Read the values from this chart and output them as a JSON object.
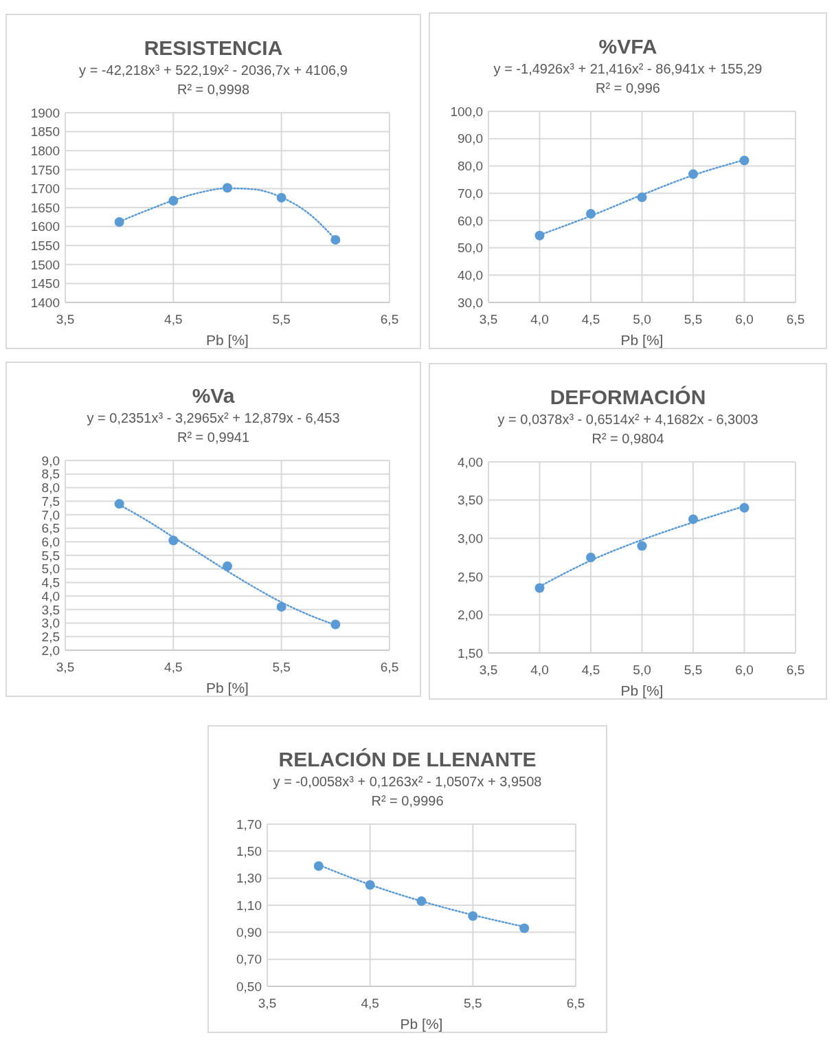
{
  "chart_data": [
    {
      "type": "scatter",
      "title": "RESISTENCIA",
      "subtitle": "y = -42,218x³ + 522,19x² - 2036,7x + 4106,9",
      "annotations": [
        "R² = 0,9998"
      ],
      "xlabel": "Pb [%]",
      "grid": true,
      "legend": false,
      "x": [
        4,
        4.5,
        5,
        5.5,
        6
      ],
      "xlim": [
        3.5,
        6.5
      ],
      "xticks": [
        {
          "value": 3.5,
          "label": "3,5"
        },
        {
          "value": 4.5,
          "label": "4,5"
        },
        {
          "value": 5.5,
          "label": "5,5"
        },
        {
          "value": 6.5,
          "label": "6,5"
        }
      ],
      "ylim": [
        1400,
        1900
      ],
      "yticks": [
        1400,
        1450,
        1500,
        1550,
        1600,
        1650,
        1700,
        1750,
        1800,
        1850,
        1900
      ],
      "series": [
        {
          "type": "scatter",
          "color": "#5b9bd5",
          "marker": "circle",
          "values": [
            1612,
            1668,
            1702,
            1676,
            1565
          ]
        },
        {
          "type": "line",
          "color": "#5b9bd5",
          "line_style": "dotted",
          "marker": "none",
          "x": [
            4,
            4.25,
            4.5,
            4.75,
            5,
            5.25,
            5.5,
            5.75,
            6
          ],
          "values": [
            1613,
            1642,
            1669,
            1690,
            1701,
            1698,
            1677,
            1635,
            1566
          ]
        }
      ]
    },
    {
      "type": "scatter",
      "title": "%VFA",
      "subtitle": "y = -1,4926x³ + 21,416x² - 86,941x + 155,29",
      "annotations": [
        "R² = 0,996"
      ],
      "xlabel": "Pb [%]",
      "grid": true,
      "legend": false,
      "x": [
        4,
        4.5,
        5,
        5.5,
        6
      ],
      "xlim": [
        3.5,
        6.5
      ],
      "xticks": [
        {
          "value": 3.5,
          "label": "3,5"
        },
        {
          "value": 4,
          "label": "4,0"
        },
        {
          "value": 4.5,
          "label": "4,5"
        },
        {
          "value": 5,
          "label": "5,0"
        },
        {
          "value": 5.5,
          "label": "5,5"
        },
        {
          "value": 6,
          "label": "6,0"
        },
        {
          "value": 6.5,
          "label": "6,5"
        }
      ],
      "ylim": [
        30,
        100
      ],
      "yticks": [
        {
          "value": 30,
          "label": "30,0"
        },
        {
          "value": 40,
          "label": "40,0"
        },
        {
          "value": 50,
          "label": "50,0"
        },
        {
          "value": 60,
          "label": "60,0"
        },
        {
          "value": 70,
          "label": "70,0"
        },
        {
          "value": 80,
          "label": "80,0"
        },
        {
          "value": 90,
          "label": "90,0"
        },
        {
          "value": 100,
          "label": "100,0"
        }
      ],
      "series": [
        {
          "type": "scatter",
          "color": "#5b9bd5",
          "marker": "circle",
          "values": [
            54.5,
            62.5,
            68.5,
            77,
            82
          ]
        },
        {
          "type": "line",
          "color": "#5b9bd5",
          "line_style": "dotted",
          "marker": "none",
          "x": [
            4,
            4.5,
            5,
            5.5,
            6
          ],
          "values": [
            54.7,
            61.7,
            69.4,
            76.6,
            82.2
          ]
        }
      ]
    },
    {
      "type": "scatter",
      "title": "%Va",
      "subtitle": "y = 0,2351x³ - 3,2965x² + 12,879x - 6,453",
      "annotations": [
        "R² = 0,9941"
      ],
      "xlabel": "Pb [%]",
      "grid": true,
      "legend": false,
      "x": [
        4,
        4.5,
        5,
        5.5,
        6
      ],
      "xlim": [
        3.5,
        6.5
      ],
      "xticks": [
        {
          "value": 3.5,
          "label": "3,5"
        },
        {
          "value": 4.5,
          "label": "4,5"
        },
        {
          "value": 5.5,
          "label": "5,5"
        },
        {
          "value": 6.5,
          "label": "6,5"
        }
      ],
      "ylim": [
        2,
        9
      ],
      "yticks": [
        {
          "value": 2,
          "label": "2,0"
        },
        {
          "value": 2.5,
          "label": "2,5"
        },
        {
          "value": 3,
          "label": "3,0"
        },
        {
          "value": 3.5,
          "label": "3,5"
        },
        {
          "value": 4,
          "label": "4,0"
        },
        {
          "value": 4.5,
          "label": "4,5"
        },
        {
          "value": 5,
          "label": "5,0"
        },
        {
          "value": 5.5,
          "label": "5,5"
        },
        {
          "value": 6,
          "label": "6,0"
        },
        {
          "value": 6.5,
          "label": "6,5"
        },
        {
          "value": 7,
          "label": "7,0"
        },
        {
          "value": 7.5,
          "label": "7,5"
        },
        {
          "value": 8,
          "label": "8,0"
        },
        {
          "value": 8.5,
          "label": "8,5"
        },
        {
          "value": 9,
          "label": "9,0"
        }
      ],
      "series": [
        {
          "type": "scatter",
          "color": "#5b9bd5",
          "marker": "circle",
          "values": [
            7.4,
            6.05,
            5.1,
            3.6,
            2.95
          ]
        },
        {
          "type": "line",
          "color": "#5b9bd5",
          "line_style": "dotted",
          "marker": "none",
          "x": [
            4,
            4.25,
            4.5,
            4.75,
            5,
            5.25,
            5.5,
            5.75,
            6
          ],
          "values": [
            7.37,
            6.8,
            6.17,
            5.55,
            4.92,
            4.32,
            3.77,
            3.31,
            2.93
          ]
        }
      ]
    },
    {
      "type": "scatter",
      "title": "DEFORMACIÓN",
      "subtitle": "y = 0,0378x³ - 0,6514x² + 4,1682x - 6,3003",
      "annotations": [
        "R² = 0,9804"
      ],
      "xlabel": "Pb [%]",
      "grid": true,
      "legend": false,
      "x": [
        4,
        4.5,
        5,
        5.5,
        6
      ],
      "xlim": [
        3.5,
        6.5
      ],
      "xticks": [
        {
          "value": 3.5,
          "label": "3,5"
        },
        {
          "value": 4,
          "label": "4,0"
        },
        {
          "value": 4.5,
          "label": "4,5"
        },
        {
          "value": 5,
          "label": "5,0"
        },
        {
          "value": 5.5,
          "label": "5,5"
        },
        {
          "value": 6,
          "label": "6,0"
        },
        {
          "value": 6.5,
          "label": "6,5"
        }
      ],
      "ylim": [
        1.5,
        4
      ],
      "yticks": [
        {
          "value": 1.5,
          "label": "1,50"
        },
        {
          "value": 2,
          "label": "2,00"
        },
        {
          "value": 2.5,
          "label": "2,50"
        },
        {
          "value": 3,
          "label": "3,00"
        },
        {
          "value": 3.5,
          "label": "3,50"
        },
        {
          "value": 4,
          "label": "4,00"
        }
      ],
      "series": [
        {
          "type": "scatter",
          "color": "#5b9bd5",
          "marker": "circle",
          "values": [
            2.35,
            2.75,
            2.9,
            3.25,
            3.4
          ]
        },
        {
          "type": "line",
          "color": "#5b9bd5",
          "line_style": "dotted",
          "marker": "none",
          "x": [
            4,
            4.5,
            5,
            5.5,
            6
          ],
          "values": [
            2.37,
            2.71,
            2.98,
            3.21,
            3.42
          ]
        }
      ]
    },
    {
      "type": "scatter",
      "title": "RELACIÓN DE LLENANTE",
      "subtitle": "y = -0,0058x³ + 0,1263x² - 1,0507x + 3,9508",
      "annotations": [
        "R² = 0,9996"
      ],
      "xlabel": "Pb [%]",
      "grid": true,
      "legend": false,
      "x": [
        4,
        4.5,
        5,
        5.5,
        6
      ],
      "xlim": [
        3.5,
        6.5
      ],
      "xticks": [
        {
          "value": 3.5,
          "label": "3,5"
        },
        {
          "value": 4.5,
          "label": "4,5"
        },
        {
          "value": 5.5,
          "label": "5,5"
        },
        {
          "value": 6.5,
          "label": "6,5"
        }
      ],
      "ylim": [
        0.5,
        1.7
      ],
      "yticks": [
        {
          "value": 0.5,
          "label": "0,50"
        },
        {
          "value": 0.7,
          "label": "0,70"
        },
        {
          "value": 0.9,
          "label": "0,90"
        },
        {
          "value": 1.1,
          "label": "1,10"
        },
        {
          "value": 1.3,
          "label": "1,30"
        },
        {
          "value": 1.5,
          "label": "1,50"
        },
        {
          "value": 1.7,
          "label": "1,70"
        }
      ],
      "series": [
        {
          "type": "scatter",
          "color": "#5b9bd5",
          "marker": "circle",
          "values": [
            1.39,
            1.25,
            1.13,
            1.02,
            0.93
          ]
        },
        {
          "type": "line",
          "color": "#5b9bd5",
          "line_style": "dotted",
          "marker": "none",
          "x": [
            4,
            4.5,
            5,
            5.5,
            6
          ],
          "values": [
            1.398,
            1.252,
            1.13,
            1.028,
            0.941
          ]
        }
      ]
    }
  ]
}
